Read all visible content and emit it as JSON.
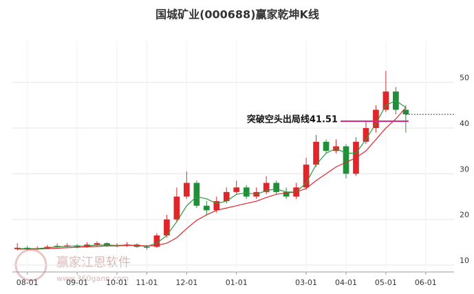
{
  "chart_data": {
    "type": "candlestick",
    "title": "国城矿业(000688)赢家乾坤K线",
    "categories": [
      null,
      "08-01",
      null,
      null,
      null,
      null,
      "09-01",
      null,
      null,
      null,
      "10-01",
      null,
      null,
      "11-01",
      null,
      null,
      null,
      "12-01",
      null,
      null,
      null,
      null,
      "01-01",
      null,
      null,
      null,
      null,
      null,
      null,
      "03-01",
      null,
      null,
      null,
      "04-01",
      null,
      null,
      null,
      "05-01",
      null,
      null,
      null,
      "06-01",
      null,
      null
    ],
    "open": [
      13.5,
      13.8,
      13.5,
      13.7,
      14.0,
      14.2,
      14.3,
      14.0,
      14.5,
      14.8,
      14.2,
      14.3,
      14.5,
      14.0,
      14.0,
      16.5,
      20,
      25,
      28,
      23,
      22,
      24,
      26,
      27,
      25,
      26,
      28,
      26,
      25,
      27,
      32,
      37,
      35,
      36,
      30,
      37,
      40,
      44,
      48,
      44,
      null,
      null,
      null,
      null
    ],
    "high": [
      14.8,
      14.2,
      14.1,
      14.4,
      14.7,
      14.8,
      14.6,
      15,
      15.2,
      15,
      14.8,
      15,
      14.8,
      14.4,
      17,
      21,
      27,
      30.5,
      28.5,
      24,
      25,
      27,
      28.5,
      27.5,
      27,
      29.5,
      28.5,
      27,
      28,
      33.5,
      38.5,
      37.5,
      37.5,
      36.5,
      38,
      41.5,
      45,
      52.5,
      49,
      45,
      null,
      null,
      null,
      null
    ],
    "low": [
      13.2,
      13.2,
      13.3,
      13.5,
      13.8,
      13.9,
      13.7,
      13.8,
      14.2,
      14,
      13.9,
      14,
      13.8,
      13.4,
      13.8,
      16,
      19.5,
      24.5,
      22.5,
      21,
      21.5,
      23.5,
      25.5,
      24.5,
      24.5,
      25.5,
      25.5,
      24.5,
      24.5,
      26.5,
      31.5,
      34.5,
      34.5,
      29,
      29.5,
      36.5,
      39,
      43.5,
      43,
      39,
      null,
      null,
      null,
      null
    ],
    "close": [
      13.8,
      13.5,
      13.7,
      14.0,
      14.2,
      14.3,
      14.0,
      14.5,
      14.8,
      14.2,
      14.3,
      14.5,
      14.0,
      13.8,
      16.5,
      20,
      25,
      28,
      23,
      22,
      24,
      26,
      27,
      25,
      26,
      28,
      26,
      25,
      27,
      32,
      37,
      35,
      36,
      30,
      37,
      40,
      44,
      48,
      44,
      43,
      null,
      null,
      null,
      null
    ],
    "up_color": "#e0262b",
    "down_color": "#1f8f3a",
    "lines": [
      {
        "color": "#2a9a3a",
        "values": [
          13.6,
          13.6,
          13.6,
          13.8,
          14,
          14.1,
          14.2,
          14.2,
          14.4,
          14.4,
          14.3,
          14.4,
          14.3,
          14.1,
          14.8,
          16.5,
          19.5,
          23,
          25,
          24.5,
          23.5,
          24,
          25.5,
          25.8,
          25.5,
          26.3,
          26.7,
          26,
          26,
          28,
          32,
          34.5,
          35.5,
          34.5,
          34.5,
          37.5,
          41,
          45,
          46,
          44.5,
          null,
          null,
          null,
          null
        ]
      },
      {
        "color": "#e0262b",
        "values": [
          13.5,
          13.5,
          13.5,
          13.6,
          13.7,
          13.8,
          13.9,
          14,
          14.1,
          14.2,
          14.2,
          14.3,
          14.3,
          14.2,
          14.3,
          14.8,
          16,
          18,
          19.8,
          21,
          22,
          22.5,
          23,
          23.5,
          24,
          24.8,
          25.5,
          25.8,
          26,
          26.8,
          28.5,
          30,
          31.5,
          32.5,
          33.5,
          35,
          37.5,
          40,
          42,
          44.5,
          null,
          null,
          null,
          null
        ]
      }
    ],
    "annotation": {
      "label": "突破空头出局线41.51",
      "value": 41.51,
      "color": "#e0228a"
    },
    "watermark": [
      "赢家江恩软件",
      "www.360gann.com"
    ],
    "ylim": [
      8.5,
      62
    ],
    "yticks": [
      10,
      20,
      30,
      40,
      50
    ],
    "grid": true
  }
}
